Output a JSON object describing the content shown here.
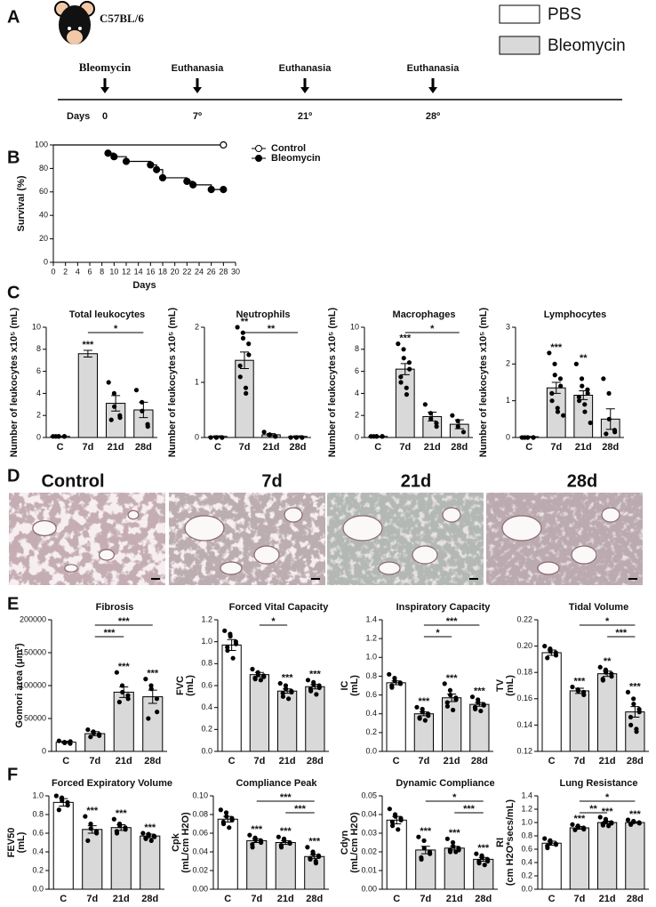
{
  "panel_labels": [
    "A",
    "B",
    "C",
    "D",
    "E",
    "F"
  ],
  "legend": {
    "items": [
      {
        "name": "PBS",
        "color": "#ffffff"
      },
      {
        "name": "Bleomycin",
        "color": "#d9d9d9"
      }
    ]
  },
  "timeline": {
    "strain": "C57BL/6",
    "axis_label": "Days",
    "events": [
      {
        "label": "Bleomycin",
        "day": "0"
      },
      {
        "label": "Euthanasia",
        "day": "7º"
      },
      {
        "label": "Euthanasia",
        "day": "21º"
      },
      {
        "label": "Euthanasia",
        "day": "28º"
      }
    ]
  },
  "histology": {
    "labels": [
      "Control",
      "7d",
      "21d",
      "28d"
    ]
  },
  "chart_data": [
    {
      "type": "line",
      "xlabel": "Days",
      "ylabel": [
        "Survival (%)"
      ],
      "legend": "right",
      "xlim": [
        0,
        30
      ],
      "xticks": [
        0,
        2,
        4,
        6,
        8,
        10,
        12,
        14,
        16,
        18,
        20,
        22,
        24,
        26,
        28,
        30
      ],
      "ylim": [
        0,
        100
      ],
      "yticks": [
        0,
        20,
        40,
        60,
        80,
        100
      ],
      "series": [
        {
          "name": "Control",
          "color": "#000000",
          "marker": "open",
          "x": [
            0,
            28
          ],
          "values": [
            100,
            100
          ]
        },
        {
          "name": "Bleomycin",
          "color": "#000000",
          "marker": "filled",
          "x": [
            9,
            10,
            12,
            16,
            17,
            18,
            22,
            23,
            26,
            28
          ],
          "values": [
            93,
            90,
            86,
            83,
            79,
            72,
            69,
            66,
            62,
            62
          ]
        }
      ]
    },
    {
      "type": "bar",
      "title": "Total leukocytes",
      "ylabel": [
        "Number of leukocytes x10⁵ (mL)"
      ],
      "categories": [
        "C",
        "7d",
        "21d",
        "28d"
      ],
      "colors": [
        "#ffffff",
        "#d9d9d9",
        "#d9d9d9",
        "#d9d9d9"
      ],
      "ylim": [
        0,
        10
      ],
      "yticks": [
        0,
        2,
        4,
        6,
        8,
        10
      ],
      "values": [
        0.1,
        7.6,
        3.1,
        2.5
      ],
      "errors": [
        0.02,
        0.3,
        0.7,
        0.7
      ],
      "points": [
        [
          0.1,
          0.1,
          0.1,
          0.1,
          0.1,
          0.1
        ],
        [],
        [
          5.0,
          4.0,
          2.8,
          2.0,
          1.8,
          1.6
        ],
        [
          4.3,
          3.2,
          2.4,
          1.2,
          1.0
        ]
      ],
      "annotations": [
        null,
        "***",
        null,
        null
      ],
      "brackets": [
        {
          "from": 1,
          "to": 3,
          "label": "*"
        }
      ]
    },
    {
      "type": "bar",
      "title": "Neutrophils",
      "ylabel": [
        "Number of leukocytes x10⁵ (mL)"
      ],
      "categories": [
        "C",
        "7d",
        "21d",
        "28d"
      ],
      "colors": [
        "#ffffff",
        "#d9d9d9",
        "#d9d9d9",
        "#d9d9d9"
      ],
      "ylim": [
        0,
        2
      ],
      "yticks": [
        0,
        1,
        2
      ],
      "values": [
        0.02,
        1.4,
        0.05,
        0.02
      ],
      "errors": [
        0.01,
        0.15,
        0.02,
        0.01
      ],
      "points": [
        [
          0,
          0,
          0,
          0,
          0
        ],
        [
          2.0,
          1.9,
          1.8,
          1.7,
          1.5,
          1.3,
          1.1,
          0.9,
          0.8
        ],
        [
          0.1,
          0.05,
          0.05,
          0.02,
          0.02
        ],
        [
          0,
          0,
          0,
          0,
          0
        ]
      ],
      "annotations": [
        null,
        "**",
        null,
        null
      ],
      "brackets": [
        {
          "from": 1,
          "to": 3,
          "label": "**"
        }
      ]
    },
    {
      "type": "bar",
      "title": "Macrophages",
      "ylabel": [
        "Number of leukocytes x10⁵ (mL)"
      ],
      "categories": [
        "C",
        "7d",
        "21d",
        "28d"
      ],
      "colors": [
        "#ffffff",
        "#d9d9d9",
        "#d9d9d9",
        "#d9d9d9"
      ],
      "ylim": [
        0,
        10
      ],
      "yticks": [
        0,
        2,
        4,
        6,
        8,
        10
      ],
      "values": [
        0.1,
        6.2,
        1.9,
        1.2
      ],
      "errors": [
        0.02,
        0.5,
        0.4,
        0.4
      ],
      "points": [
        [
          0.1,
          0.1,
          0.1,
          0.1,
          0.1,
          0.1
        ],
        [
          8.5,
          8.0,
          7.2,
          6.8,
          6.2,
          5.5,
          5.0,
          4.5,
          3.9
        ],
        [
          3.0,
          2.2,
          1.7,
          1.3,
          1.0
        ],
        [
          2.0,
          1.5,
          1.0,
          0.5
        ]
      ],
      "annotations": [
        null,
        "***",
        null,
        null
      ],
      "brackets": [
        {
          "from": 1,
          "to": 3,
          "label": "*"
        }
      ]
    },
    {
      "type": "bar",
      "title": "Lymphocytes",
      "ylabel": [
        "Number of leukocytes x10⁵ (mL)"
      ],
      "categories": [
        "C",
        "7d",
        "21d",
        "28d"
      ],
      "colors": [
        "#ffffff",
        "#d9d9d9",
        "#d9d9d9",
        "#d9d9d9"
      ],
      "ylim": [
        0,
        3
      ],
      "yticks": [
        0,
        1,
        2,
        3
      ],
      "values": [
        0.02,
        1.35,
        1.15,
        0.5
      ],
      "errors": [
        0.01,
        0.15,
        0.12,
        0.28
      ],
      "points": [
        [
          0,
          0,
          0,
          0,
          0,
          0
        ],
        [
          2.3,
          2.0,
          1.7,
          1.6,
          1.4,
          1.2,
          1.0,
          0.8,
          0.7,
          0.6
        ],
        [
          2.0,
          1.6,
          1.4,
          1.3,
          1.2,
          1.1,
          1.0,
          0.9,
          0.7,
          0.4
        ],
        [
          1.6,
          1.2,
          0.5,
          0.2,
          0.15,
          0.1
        ]
      ],
      "annotations": [
        null,
        "***",
        "**",
        null
      ],
      "brackets": []
    },
    {
      "type": "bar",
      "title": "Fibrosis",
      "ylabel": [
        "Gomori area (μm²)"
      ],
      "categories": [
        "C",
        "7d",
        "21d",
        "28d"
      ],
      "colors": [
        "#ffffff",
        "#d9d9d9",
        "#d9d9d9",
        "#d9d9d9"
      ],
      "ylim": [
        0,
        200000
      ],
      "yticks": [
        0,
        50000,
        100000,
        150000,
        200000
      ],
      "values": [
        14000,
        27000,
        90000,
        83000
      ],
      "errors": [
        1500,
        3000,
        8000,
        10000
      ],
      "points": [
        [
          16000,
          14000,
          13000,
          12000,
          15000
        ],
        [
          33000,
          30000,
          28000,
          26000,
          24000,
          22000
        ],
        [
          120000,
          100000,
          90000,
          85000,
          80000,
          75000
        ],
        [
          110000,
          100000,
          95000,
          80000,
          60000,
          50000
        ]
      ],
      "annotations": [
        null,
        null,
        "***",
        "***"
      ],
      "brackets": [
        {
          "from": 1,
          "to": 3,
          "label": "***"
        },
        {
          "from": 1,
          "to": 2,
          "label": "***"
        }
      ]
    },
    {
      "type": "bar",
      "title": "Forced Vital Capacity",
      "ylabel": [
        "FVC",
        "(mL)"
      ],
      "categories": [
        "C",
        "7d",
        "21d",
        "28d"
      ],
      "colors": [
        "#ffffff",
        "#d9d9d9",
        "#d9d9d9",
        "#d9d9d9"
      ],
      "ylim": [
        0,
        1.2
      ],
      "yticks": [
        {
          "value": 0,
          "label": "0.0"
        },
        0.2,
        0.4,
        0.6,
        0.8,
        {
          "value": 1,
          "label": "1.0"
        },
        1.2
      ],
      "values": [
        0.97,
        0.7,
        0.55,
        0.59
      ],
      "errors": [
        0.05,
        0.02,
        0.02,
        0.02
      ],
      "points": [
        [
          1.1,
          1.07,
          1.05,
          1.0,
          0.98,
          0.95,
          0.92,
          0.85
        ],
        [
          0.75,
          0.72,
          0.7,
          0.69,
          0.68,
          0.67,
          0.66,
          0.65
        ],
        [
          0.62,
          0.6,
          0.57,
          0.55,
          0.54,
          0.53,
          0.5,
          0.48
        ],
        [
          0.65,
          0.63,
          0.61,
          0.6,
          0.58,
          0.57,
          0.55,
          0.52
        ]
      ],
      "annotations": [
        null,
        null,
        "***",
        "***"
      ],
      "brackets": [
        {
          "from": 1,
          "to": 2,
          "label": "*"
        }
      ]
    },
    {
      "type": "bar",
      "title": "Inspiratory Capacity",
      "ylabel": [
        "IC",
        "(mL)"
      ],
      "categories": [
        "C",
        "7d",
        "21d",
        "28d"
      ],
      "colors": [
        "#ffffff",
        "#d9d9d9",
        "#d9d9d9",
        "#d9d9d9"
      ],
      "ylim": [
        0,
        1.4
      ],
      "yticks": [
        {
          "value": 0,
          "label": "0.0"
        },
        0.2,
        0.4,
        0.6,
        0.8,
        {
          "value": 1,
          "label": "1.0"
        },
        1.2,
        1.4
      ],
      "values": [
        0.73,
        0.4,
        0.57,
        0.5
      ],
      "errors": [
        0.02,
        0.02,
        0.04,
        0.02
      ],
      "points": [
        [
          0.82,
          0.78,
          0.75,
          0.73,
          0.72,
          0.7,
          0.68
        ],
        [
          0.47,
          0.45,
          0.42,
          0.4,
          0.38,
          0.36,
          0.35,
          0.33
        ],
        [
          0.72,
          0.65,
          0.6,
          0.57,
          0.55,
          0.52,
          0.48,
          0.44
        ],
        [
          0.58,
          0.55,
          0.52,
          0.5,
          0.49,
          0.47,
          0.45,
          0.43
        ]
      ],
      "annotations": [
        null,
        "***",
        "***",
        "***"
      ],
      "brackets": [
        {
          "from": 1,
          "to": 3,
          "label": "***"
        },
        {
          "from": 1,
          "to": 2,
          "label": "*"
        }
      ]
    },
    {
      "type": "bar",
      "title": "Tidal Volume",
      "ylabel": [
        "TV",
        "(mL)"
      ],
      "categories": [
        "C",
        "7d",
        "21d",
        "28d"
      ],
      "colors": [
        "#ffffff",
        "#d9d9d9",
        "#d9d9d9",
        "#d9d9d9"
      ],
      "ylim": [
        0.12,
        0.22
      ],
      "yticks": [
        0.12,
        0.14,
        0.16,
        0.18,
        {
          "value": 0.2,
          "label": "0.20"
        },
        0.22
      ],
      "values": [
        0.195,
        0.166,
        0.179,
        0.15
      ],
      "errors": [
        0.002,
        0.002,
        0.002,
        0.004
      ],
      "points": [
        [
          0.2,
          0.198,
          0.196,
          0.195,
          0.193,
          0.191
        ],
        [
          0.169,
          0.167,
          0.166,
          0.165,
          0.163
        ],
        [
          0.184,
          0.182,
          0.18,
          0.179,
          0.177,
          0.175,
          0.174
        ],
        [
          0.165,
          0.16,
          0.156,
          0.152,
          0.15,
          0.146,
          0.14,
          0.137,
          0.135
        ]
      ],
      "annotations": [
        null,
        "***",
        "**",
        "***"
      ],
      "brackets": [
        {
          "from": 1,
          "to": 3,
          "label": "*"
        },
        {
          "from": 2,
          "to": 3,
          "label": "***"
        }
      ]
    },
    {
      "type": "bar",
      "title": "Forced Expiratory Volume",
      "ylabel": [
        "FEV50",
        "(mL)"
      ],
      "categories": [
        "C",
        "7d",
        "21d",
        "28d"
      ],
      "colors": [
        "#ffffff",
        "#d9d9d9",
        "#d9d9d9",
        "#d9d9d9"
      ],
      "ylim": [
        0,
        1
      ],
      "yticks": [
        {
          "value": 0,
          "label": "0.0"
        },
        0.2,
        0.4,
        0.6,
        0.8,
        {
          "value": 1,
          "label": "1.0"
        }
      ],
      "values": [
        0.93,
        0.64,
        0.66,
        0.57
      ],
      "errors": [
        0.04,
        0.04,
        0.03,
        0.02
      ],
      "points": [
        [
          1.0,
          0.98,
          0.95,
          0.93,
          0.9,
          0.85
        ],
        [
          0.78,
          0.7,
          0.65,
          0.62,
          0.6,
          0.52
        ],
        [
          0.75,
          0.7,
          0.68,
          0.66,
          0.64,
          0.62,
          0.6
        ],
        [
          0.6,
          0.59,
          0.58,
          0.57,
          0.56,
          0.55,
          0.54,
          0.52
        ]
      ],
      "annotations": [
        null,
        "***",
        "***",
        "***"
      ],
      "brackets": []
    },
    {
      "type": "bar",
      "title": "Compliance Peak",
      "ylabel": [
        "Cpk",
        "(mL/cm H2O)"
      ],
      "categories": [
        "C",
        "7d",
        "21d",
        "28d"
      ],
      "colors": [
        "#ffffff",
        "#d9d9d9",
        "#d9d9d9",
        "#d9d9d9"
      ],
      "ylim": [
        0,
        0.1
      ],
      "yticks": [
        {
          "value": 0,
          "label": "0.00"
        },
        0.02,
        0.04,
        0.06,
        0.08,
        {
          "value": 0.1,
          "label": "0.10"
        }
      ],
      "values": [
        0.075,
        0.052,
        0.05,
        0.035
      ],
      "errors": [
        0.003,
        0.002,
        0.002,
        0.002
      ],
      "points": [
        [
          0.085,
          0.082,
          0.078,
          0.076,
          0.074,
          0.072,
          0.07,
          0.066
        ],
        [
          0.058,
          0.055,
          0.053,
          0.052,
          0.05,
          0.048,
          0.045
        ],
        [
          0.056,
          0.054,
          0.052,
          0.05,
          0.049,
          0.047,
          0.045
        ],
        [
          0.045,
          0.04,
          0.038,
          0.036,
          0.035,
          0.033,
          0.032,
          0.03,
          0.028
        ]
      ],
      "annotations": [
        null,
        "***",
        "***",
        "***"
      ],
      "brackets": [
        {
          "from": 1,
          "to": 3,
          "label": "***"
        },
        {
          "from": 2,
          "to": 3,
          "label": "***"
        }
      ]
    },
    {
      "type": "bar",
      "title": "Dynamic Compliance",
      "ylabel": [
        "Cdyn",
        "(mL/cm H2O)"
      ],
      "categories": [
        "C",
        "7d",
        "21d",
        "28d"
      ],
      "colors": [
        "#ffffff",
        "#d9d9d9",
        "#d9d9d9",
        "#d9d9d9"
      ],
      "ylim": [
        0,
        0.05
      ],
      "yticks": [
        {
          "value": 0,
          "label": "0.00"
        },
        0.01,
        0.02,
        0.03,
        0.04,
        0.05
      ],
      "values": [
        0.037,
        0.021,
        0.022,
        0.016
      ],
      "errors": [
        0.002,
        0.002,
        0.001,
        0.001
      ],
      "points": [
        [
          0.043,
          0.04,
          0.039,
          0.038,
          0.037,
          0.036,
          0.034,
          0.032
        ],
        [
          0.028,
          0.026,
          0.022,
          0.02,
          0.019,
          0.017,
          0.016
        ],
        [
          0.027,
          0.025,
          0.023,
          0.022,
          0.021,
          0.021,
          0.02,
          0.02
        ],
        [
          0.019,
          0.018,
          0.017,
          0.016,
          0.015,
          0.015,
          0.014,
          0.013
        ]
      ],
      "annotations": [
        null,
        "***",
        "***",
        "***"
      ],
      "brackets": [
        {
          "from": 1,
          "to": 3,
          "label": "*"
        },
        {
          "from": 2,
          "to": 3,
          "label": "***"
        }
      ]
    },
    {
      "type": "bar",
      "title": "Lung Resistance",
      "ylabel": [
        "RI",
        "(cm H2O*secs/mL)"
      ],
      "categories": [
        "C",
        "7d",
        "21d",
        "28d"
      ],
      "colors": [
        "#ffffff",
        "#d9d9d9",
        "#d9d9d9",
        "#d9d9d9"
      ],
      "ylim": [
        0,
        1.4
      ],
      "yticks": [
        {
          "value": 0,
          "label": "0.0"
        },
        0.2,
        0.4,
        0.6,
        0.8,
        {
          "value": 1,
          "label": "1.0"
        },
        1.2,
        1.4
      ],
      "values": [
        0.69,
        0.92,
        1.0,
        1.0
      ],
      "errors": [
        0.03,
        0.02,
        0.02,
        0.01
      ],
      "points": [
        [
          0.76,
          0.73,
          0.7,
          0.68,
          0.67,
          0.65,
          0.62
        ],
        [
          0.97,
          0.95,
          0.93,
          0.92,
          0.9,
          0.89
        ],
        [
          1.08,
          1.05,
          1.02,
          1.0,
          0.99,
          0.98,
          0.96,
          0.95
        ],
        [
          1.04,
          1.02,
          1.01,
          1.0,
          0.99,
          0.98,
          0.97
        ]
      ],
      "annotations": [
        null,
        "***",
        "***",
        "***"
      ],
      "brackets": [
        {
          "from": 1,
          "to": 3,
          "label": "*"
        },
        {
          "from": 1,
          "to": 2,
          "label": "**"
        }
      ]
    }
  ]
}
